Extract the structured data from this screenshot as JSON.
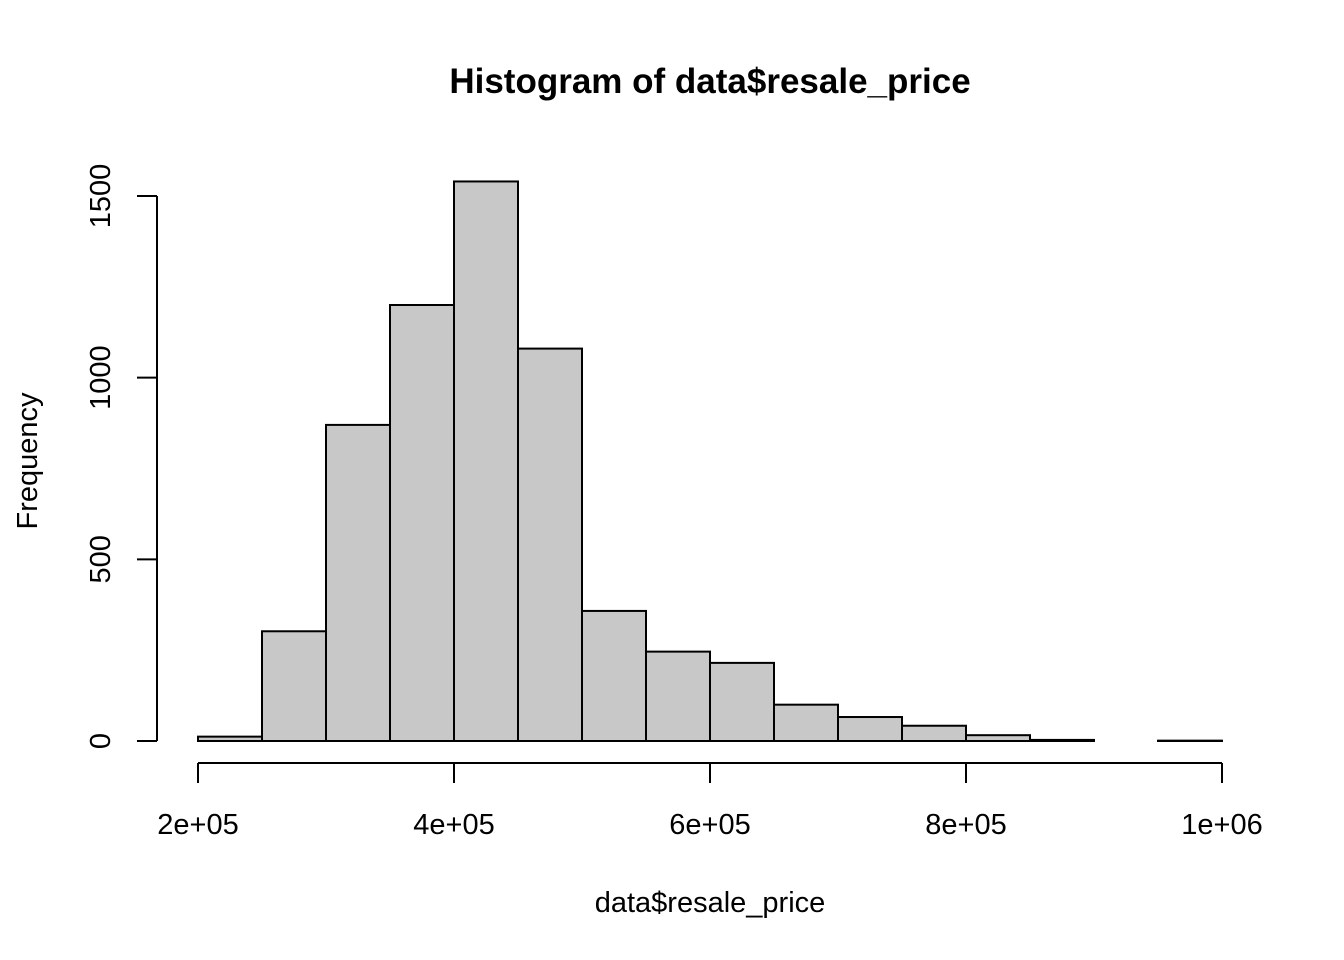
{
  "chart_data": {
    "type": "bar",
    "title": "Histogram of data$resale_price",
    "xlabel": "data$resale_price",
    "ylabel": "Frequency",
    "xlim": [
      200000,
      1000000
    ],
    "ylim": [
      0,
      1500
    ],
    "x_ticks": [
      200000,
      400000,
      600000,
      800000,
      1000000
    ],
    "x_tick_labels": [
      "2e+05",
      "4e+05",
      "6e+05",
      "8e+05",
      "1e+06"
    ],
    "y_ticks": [
      0,
      500,
      1000,
      1500
    ],
    "y_tick_labels": [
      "0",
      "500",
      "1000",
      "1500"
    ],
    "bin_width": 50000,
    "bins": [
      {
        "start": 200000,
        "end": 250000,
        "count": 12
      },
      {
        "start": 250000,
        "end": 300000,
        "count": 302
      },
      {
        "start": 300000,
        "end": 350000,
        "count": 870
      },
      {
        "start": 350000,
        "end": 400000,
        "count": 1200
      },
      {
        "start": 400000,
        "end": 450000,
        "count": 1540
      },
      {
        "start": 450000,
        "end": 500000,
        "count": 1080
      },
      {
        "start": 500000,
        "end": 550000,
        "count": 358
      },
      {
        "start": 550000,
        "end": 600000,
        "count": 246
      },
      {
        "start": 600000,
        "end": 650000,
        "count": 215
      },
      {
        "start": 650000,
        "end": 700000,
        "count": 100
      },
      {
        "start": 700000,
        "end": 750000,
        "count": 66
      },
      {
        "start": 750000,
        "end": 800000,
        "count": 42
      },
      {
        "start": 800000,
        "end": 850000,
        "count": 16
      },
      {
        "start": 850000,
        "end": 900000,
        "count": 3
      },
      {
        "start": 900000,
        "end": 950000,
        "count": 0
      },
      {
        "start": 950000,
        "end": 1000000,
        "count": 1
      }
    ],
    "bar_fill": "#c8c8c8",
    "grid": false,
    "legend": "none"
  }
}
